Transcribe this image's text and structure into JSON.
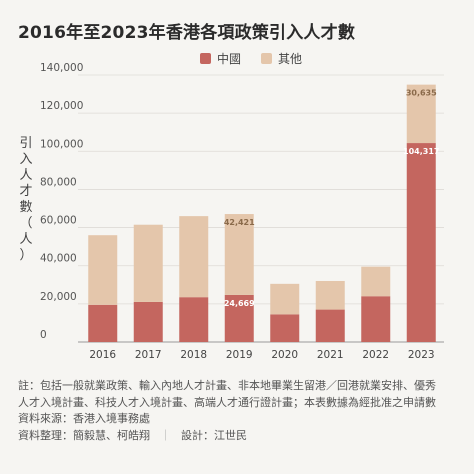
{
  "title": "2016年至2023年香港各項政策引入人才數",
  "ylabel": "引入人才數（人）",
  "legend": [
    {
      "label": "中國",
      "color": "#c4665f"
    },
    {
      "label": "其他",
      "color": "#e4c6ab"
    }
  ],
  "chart_data": {
    "type": "bar",
    "stacked": true,
    "categories": [
      "2016",
      "2017",
      "2018",
      "2019",
      "2020",
      "2021",
      "2022",
      "2023"
    ],
    "series": [
      {
        "name": "中國",
        "color": "#c4665f",
        "values": [
          19500,
          21000,
          23500,
          24669,
          14500,
          17000,
          24000,
          104317
        ]
      },
      {
        "name": "其他",
        "color": "#e4c6ab",
        "values": [
          36500,
          40500,
          42500,
          42421,
          16000,
          15000,
          15500,
          30635
        ]
      }
    ],
    "data_labels": [
      {
        "index": 3,
        "series": 0,
        "text": "24,669"
      },
      {
        "index": 3,
        "series": 1,
        "text": "42,421"
      },
      {
        "index": 7,
        "series": 0,
        "text": "104,317"
      },
      {
        "index": 7,
        "series": 1,
        "text": "30,635"
      }
    ],
    "y_ticks": [
      "0",
      "20,000",
      "40,000",
      "60,000",
      "80,000",
      "100,000",
      "120,000",
      "140,000"
    ],
    "ylim": [
      0,
      140000
    ],
    "grid": true,
    "legend_position": "top-center"
  },
  "notes": {
    "line1": "註：包括一般就業政策、輸入內地人才計畫、非本地畢業生留港／回港就業安排、優秀",
    "line2": "人才入境計畫、科技人才入境計畫、高端人才通行證計畫；本表數據為經批准之申請數",
    "source": "資料來源：香港入境事務處",
    "compiled": "資料整理：簡毅慧、柯皓翔",
    "separator": "｜",
    "design": "設計：江世民"
  }
}
